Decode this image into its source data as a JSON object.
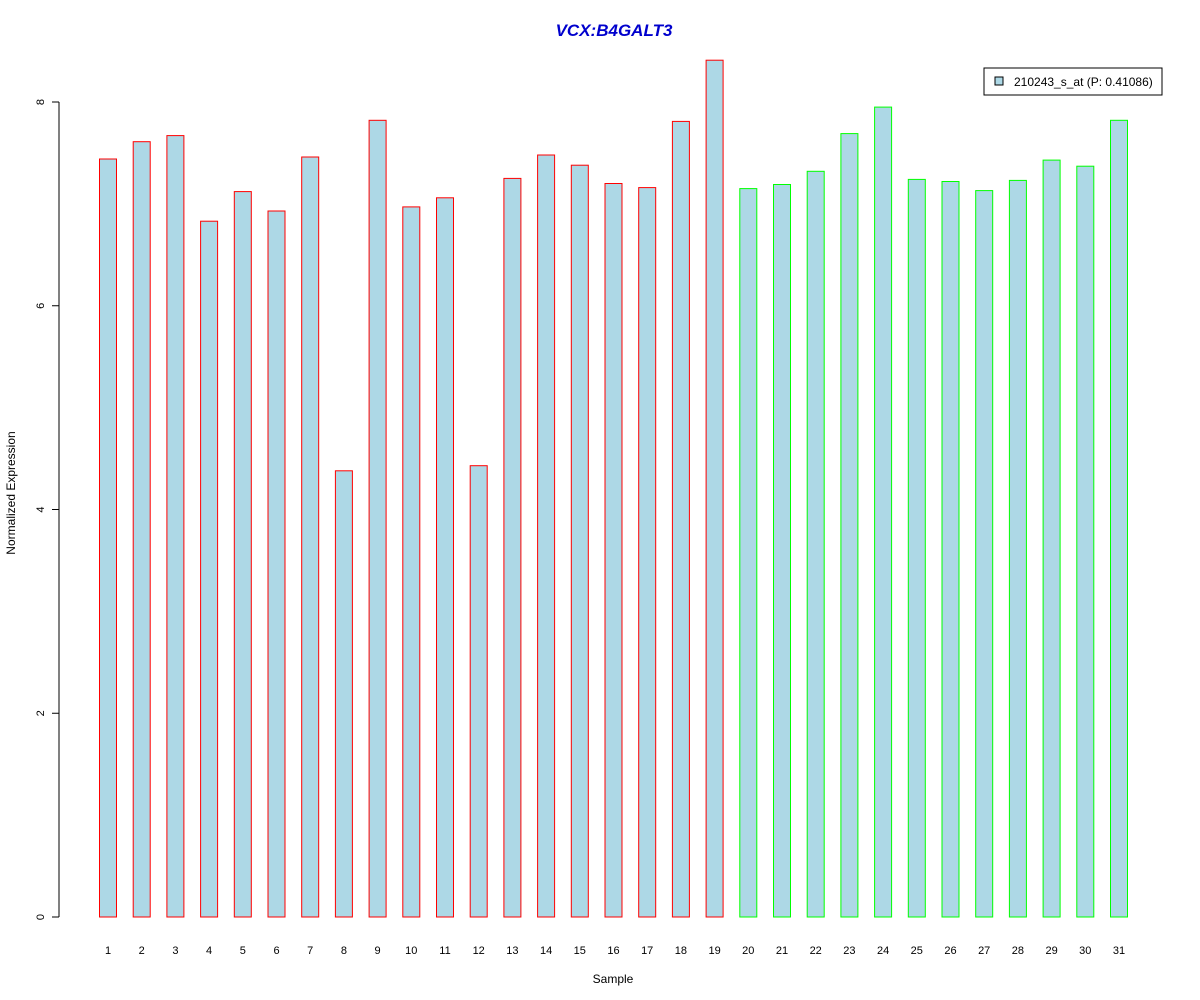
{
  "chart_data": {
    "type": "bar",
    "title": "VCX:B4GALT3",
    "xlabel": "Sample",
    "ylabel": "Normalized Expression",
    "ylim": [
      0,
      8.4
    ],
    "yticks": [
      0,
      2,
      4,
      6,
      8
    ],
    "categories": [
      "1",
      "2",
      "3",
      "4",
      "5",
      "6",
      "7",
      "8",
      "9",
      "10",
      "11",
      "12",
      "13",
      "14",
      "15",
      "16",
      "17",
      "18",
      "19",
      "20",
      "21",
      "22",
      "23",
      "24",
      "25",
      "26",
      "27",
      "28",
      "29",
      "30",
      "31"
    ],
    "series": [
      {
        "name": "210243_s_at (P: 0.41086)",
        "values": [
          7.44,
          7.61,
          7.67,
          6.83,
          7.12,
          6.93,
          7.46,
          4.38,
          7.82,
          6.97,
          7.06,
          4.43,
          7.25,
          7.48,
          7.38,
          7.2,
          7.16,
          7.81,
          8.41,
          7.15,
          7.19,
          7.32,
          7.69,
          7.95,
          7.24,
          7.22,
          7.13,
          7.23,
          7.43,
          7.37,
          7.82
        ]
      }
    ],
    "group_membership": [
      1,
      1,
      1,
      1,
      1,
      1,
      1,
      1,
      1,
      1,
      1,
      1,
      1,
      1,
      1,
      1,
      1,
      1,
      1,
      2,
      2,
      2,
      2,
      2,
      2,
      2,
      2,
      2,
      2,
      2,
      2
    ],
    "colors": {
      "fill": "#add8e6",
      "group1_border": "#ff0000",
      "group2_border": "#00ff00",
      "title": "#0000cd"
    },
    "legend": {
      "placement": "top-right",
      "label": "210243_s_at (P: 0.41086)"
    },
    "grid": false
  }
}
